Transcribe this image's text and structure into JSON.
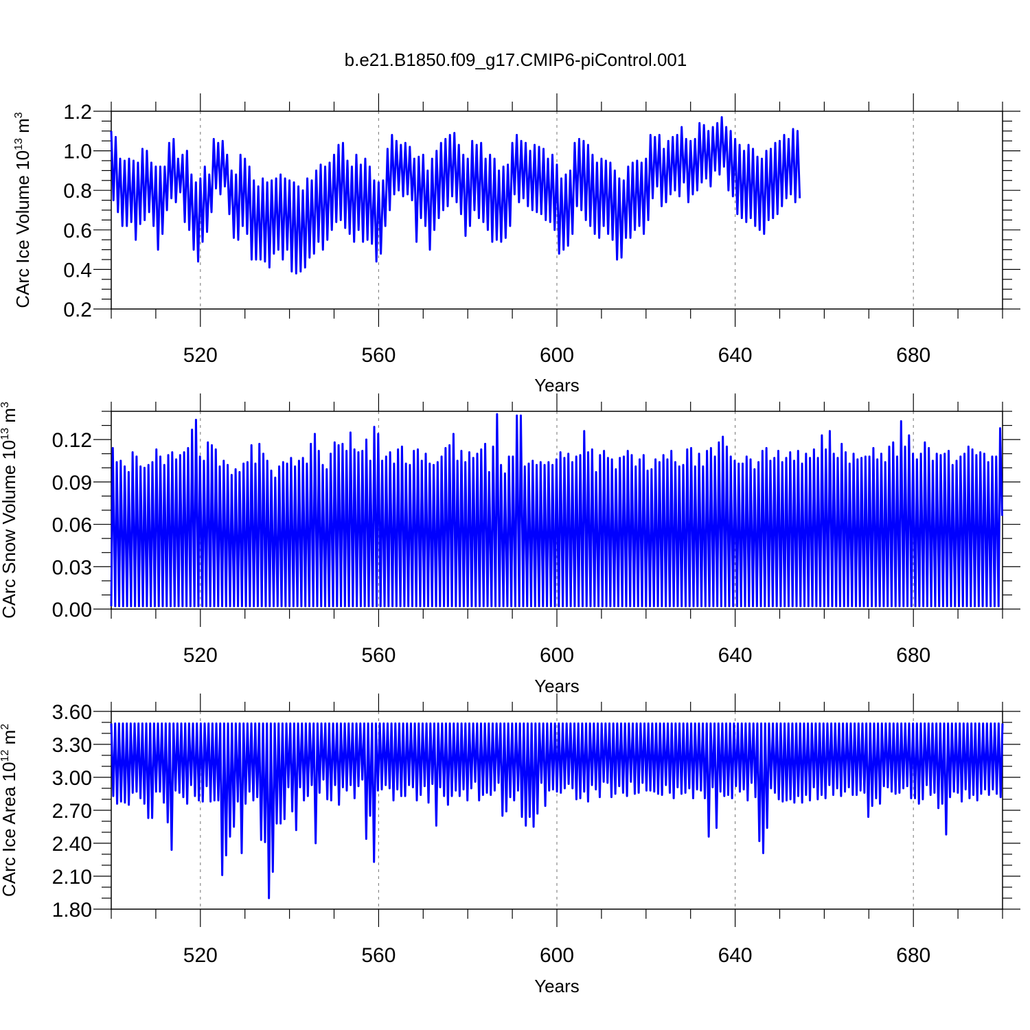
{
  "title": "b.e21.B1850.f09_g17.CMIP6-piControl.001",
  "chart_data": [
    {
      "type": "line",
      "title": "b.e21.B1850.f09_g17.CMIP6-piControl.001",
      "xlabel": "Years",
      "ylabel": {
        "prefix": "CArc Ice Volume 10",
        "exp": "13",
        "unit": " m",
        "unit_exp": "3"
      },
      "xlim": [
        500,
        700
      ],
      "ylim": [
        0.2,
        1.2
      ],
      "xticks": [
        "520",
        "560",
        "600",
        "640",
        "680"
      ],
      "yticks": [
        "0.2",
        "0.4",
        "0.6",
        "0.8",
        "1.0",
        "1.2"
      ],
      "color": "#0000ff",
      "series": [
        {
          "x_start": 500,
          "step": 0.5,
          "values": [
            1.1,
            0.75,
            1.07,
            0.69,
            0.96,
            0.62,
            0.95,
            0.62,
            0.96,
            0.64,
            0.95,
            0.55,
            0.94,
            0.63,
            1.01,
            0.65,
            1.0,
            0.69,
            0.94,
            0.62,
            0.92,
            0.5,
            0.92,
            0.58,
            0.92,
            0.7,
            1.04,
            0.76,
            1.06,
            0.74,
            0.96,
            0.79,
            0.98,
            0.64,
            1.0,
            0.6,
            0.88,
            0.5,
            0.84,
            0.44,
            0.86,
            0.54,
            0.92,
            0.59,
            0.88,
            0.69,
            1.06,
            0.81,
            1.04,
            0.78,
            1.05,
            0.82,
            0.98,
            0.68,
            0.9,
            0.56,
            0.88,
            0.55,
            0.98,
            0.62,
            0.96,
            0.58,
            0.92,
            0.45,
            0.85,
            0.45,
            0.82,
            0.45,
            0.86,
            0.44,
            0.84,
            0.41,
            0.85,
            0.48,
            0.86,
            0.5,
            0.88,
            0.45,
            0.86,
            0.5,
            0.85,
            0.39,
            0.84,
            0.38,
            0.82,
            0.39,
            0.8,
            0.41,
            0.86,
            0.46,
            0.85,
            0.48,
            0.9,
            0.54,
            0.93,
            0.5,
            0.92,
            0.55,
            0.94,
            0.6,
            0.98,
            0.64,
            1.03,
            0.65,
            1.04,
            0.61,
            0.95,
            0.58,
            0.92,
            0.54,
            0.98,
            0.6,
            0.93,
            0.54,
            0.96,
            0.55,
            0.92,
            0.53,
            0.85,
            0.44,
            0.84,
            0.48,
            0.85,
            0.62,
            1.01,
            0.7,
            1.08,
            0.78,
            1.05,
            0.8,
            1.03,
            0.77,
            1.04,
            0.78,
            1.02,
            0.75,
            0.96,
            0.54,
            0.97,
            0.66,
            0.98,
            0.62,
            0.9,
            0.5,
            0.96,
            0.6,
            1.0,
            0.66,
            1.04,
            0.7,
            1.06,
            0.72,
            1.08,
            0.77,
            1.09,
            0.74,
            1.03,
            0.68,
            0.98,
            0.57,
            0.96,
            0.62,
            1.05,
            0.7,
            1.03,
            0.66,
            1.04,
            0.64,
            0.96,
            0.6,
            0.98,
            0.54,
            0.96,
            0.55,
            0.9,
            0.54,
            0.92,
            0.56,
            0.93,
            0.62,
            1.04,
            0.78,
            1.08,
            0.74,
            1.05,
            0.76,
            1.04,
            0.72,
            1.0,
            0.7,
            1.03,
            0.69,
            1.02,
            0.68,
            1.01,
            0.65,
            0.96,
            0.64,
            0.98,
            0.6,
            0.93,
            0.48,
            0.86,
            0.5,
            0.88,
            0.52,
            0.9,
            0.58,
            1.04,
            0.72,
            1.06,
            0.7,
            1.05,
            0.65,
            1.03,
            0.62,
            0.98,
            0.58,
            0.94,
            0.56,
            0.96,
            0.62,
            0.95,
            0.58,
            0.94,
            0.55,
            0.9,
            0.45,
            0.86,
            0.46,
            0.85,
            0.56,
            0.92,
            0.56,
            0.94,
            0.6,
            0.95,
            0.62,
            0.94,
            0.58,
            0.96,
            0.65,
            1.08,
            0.76,
            1.07,
            0.82,
            1.08,
            0.72,
            1.01,
            0.74,
            1.05,
            0.78,
            1.07,
            0.8,
            1.08,
            0.77,
            1.12,
            0.84,
            1.06,
            0.74,
            1.05,
            0.78,
            1.06,
            0.8,
            1.14,
            0.84,
            1.13,
            0.86,
            1.1,
            0.82,
            1.12,
            0.9,
            1.14,
            0.88,
            1.17,
            0.92,
            1.12,
            0.8,
            1.1,
            0.77,
            1.06,
            0.68,
            1.03,
            0.66,
            1.0,
            0.64,
            1.03,
            0.66,
            1.01,
            0.62,
            0.97,
            0.6,
            0.96,
            0.58,
            1.0,
            0.65,
            1.01,
            0.66,
            1.04,
            0.68,
            1.05,
            0.72,
            1.08,
            0.76,
            1.06,
            0.78,
            1.11,
            0.74,
            1.1,
            0.76
          ]
        }
      ]
    },
    {
      "type": "line",
      "xlabel": "Years",
      "ylabel": {
        "prefix": "CArc Snow Volume 10",
        "exp": "13",
        "unit": " m",
        "unit_exp": "3"
      },
      "xlim": [
        500,
        700
      ],
      "ylim": [
        0.0,
        0.14
      ],
      "xticks": [
        "520",
        "560",
        "600",
        "640",
        "680"
      ],
      "yticks": [
        "0.00",
        "0.03",
        "0.06",
        "0.09",
        "0.12"
      ],
      "color": "#0000ff",
      "series": [
        {
          "x_start": 500,
          "min_value": 0.002,
          "peaks": [
            0.114,
            0.104,
            0.105,
            0.101,
            0.097,
            0.111,
            0.108,
            0.101,
            0.1,
            0.102,
            0.104,
            0.113,
            0.108,
            0.102,
            0.109,
            0.111,
            0.106,
            0.109,
            0.111,
            0.114,
            0.127,
            0.134,
            0.108,
            0.105,
            0.118,
            0.116,
            0.113,
            0.101,
            0.105,
            0.102,
            0.095,
            0.099,
            0.097,
            0.103,
            0.104,
            0.116,
            0.103,
            0.117,
            0.11,
            0.105,
            0.098,
            0.093,
            0.101,
            0.104,
            0.103,
            0.107,
            0.101,
            0.105,
            0.107,
            0.103,
            0.117,
            0.124,
            0.112,
            0.102,
            0.099,
            0.11,
            0.118,
            0.116,
            0.117,
            0.112,
            0.125,
            0.113,
            0.111,
            0.112,
            0.12,
            0.105,
            0.129,
            0.124,
            0.105,
            0.108,
            0.111,
            0.103,
            0.113,
            0.115,
            0.103,
            0.102,
            0.112,
            0.113,
            0.105,
            0.11,
            0.103,
            0.102,
            0.104,
            0.108,
            0.114,
            0.116,
            0.124,
            0.105,
            0.112,
            0.104,
            0.111,
            0.107,
            0.11,
            0.113,
            0.117,
            0.097,
            0.115,
            0.138,
            0.102,
            0.096,
            0.108,
            0.108,
            0.137,
            0.137,
            0.101,
            0.103,
            0.105,
            0.102,
            0.104,
            0.102,
            0.104,
            0.102,
            0.106,
            0.111,
            0.107,
            0.11,
            0.104,
            0.108,
            0.109,
            0.126,
            0.111,
            0.113,
            0.097,
            0.109,
            0.112,
            0.107,
            0.106,
            0.099,
            0.107,
            0.108,
            0.112,
            0.109,
            0.101,
            0.106,
            0.109,
            0.098,
            0.099,
            0.106,
            0.104,
            0.109,
            0.106,
            0.112,
            0.104,
            0.101,
            0.102,
            0.113,
            0.114,
            0.101,
            0.11,
            0.101,
            0.112,
            0.114,
            0.108,
            0.118,
            0.122,
            0.115,
            0.108,
            0.105,
            0.103,
            0.103,
            0.108,
            0.106,
            0.099,
            0.104,
            0.112,
            0.114,
            0.105,
            0.107,
            0.112,
            0.104,
            0.107,
            0.111,
            0.105,
            0.112,
            0.103,
            0.11,
            0.107,
            0.113,
            0.107,
            0.123,
            0.113,
            0.126,
            0.11,
            0.107,
            0.117,
            0.111,
            0.103,
            0.11,
            0.106,
            0.107,
            0.108,
            0.108,
            0.114,
            0.106,
            0.11,
            0.104,
            0.115,
            0.118,
            0.108,
            0.133,
            0.115,
            0.123,
            0.11,
            0.106,
            0.11,
            0.118,
            0.114,
            0.105,
            0.11,
            0.109,
            0.11,
            0.112,
            0.102,
            0.105,
            0.108,
            0.11,
            0.115,
            0.113,
            0.109,
            0.111,
            0.11,
            0.104,
            0.108,
            0.108,
            0.128
          ]
        }
      ]
    },
    {
      "type": "line",
      "xlabel": "Years",
      "ylabel": {
        "prefix": "CArc Ice Area 10",
        "exp": "12",
        "unit": " m",
        "unit_exp": "2"
      },
      "xlim": [
        500,
        700
      ],
      "ylim": [
        1.8,
        3.6
      ],
      "xticks": [
        "520",
        "560",
        "600",
        "640",
        "680"
      ],
      "yticks": [
        "1.80",
        "2.10",
        "2.40",
        "2.70",
        "3.00",
        "3.30",
        "3.60"
      ],
      "color": "#0000ff",
      "series": [
        {
          "x_start": 500,
          "max_value": 3.49,
          "troughs": [
            2.83,
            2.76,
            2.78,
            2.77,
            2.75,
            2.86,
            2.87,
            2.81,
            2.76,
            2.63,
            2.63,
            2.87,
            2.87,
            2.77,
            2.59,
            2.34,
            2.88,
            2.86,
            2.82,
            2.76,
            2.93,
            2.83,
            2.79,
            2.78,
            2.92,
            2.78,
            2.79,
            2.79,
            2.11,
            2.29,
            2.46,
            2.55,
            2.78,
            2.31,
            2.76,
            2.87,
            2.79,
            2.82,
            2.43,
            2.41,
            1.9,
            2.14,
            2.58,
            2.58,
            2.62,
            2.91,
            2.69,
            2.52,
            2.91,
            2.79,
            2.83,
            2.93,
            2.4,
            2.86,
            2.98,
            2.8,
            2.79,
            2.93,
            2.75,
            2.91,
            2.88,
            2.93,
            2.81,
            2.92,
            2.98,
            2.44,
            2.65,
            2.23,
            2.88,
            2.89,
            2.93,
            2.9,
            2.79,
            2.89,
            2.83,
            2.83,
            2.93,
            2.91,
            2.79,
            2.84,
            2.92,
            2.77,
            2.94,
            2.56,
            2.91,
            2.83,
            2.75,
            2.83,
            2.88,
            2.83,
            2.89,
            2.79,
            2.9,
            2.96,
            2.79,
            2.84,
            2.86,
            2.84,
            2.88,
            2.95,
            2.65,
            2.69,
            2.82,
            2.79,
            2.88,
            2.64,
            2.56,
            2.64,
            2.55,
            2.67,
            2.95,
            2.74,
            2.88,
            2.89,
            2.87,
            2.86,
            2.9,
            2.94,
            2.9,
            2.8,
            2.81,
            2.87,
            2.78,
            2.93,
            2.89,
            2.82,
            2.96,
            2.95,
            2.82,
            2.85,
            2.92,
            2.86,
            2.83,
            2.96,
            2.85,
            2.86,
            2.95,
            2.88,
            2.88,
            2.87,
            2.85,
            2.84,
            2.93,
            2.86,
            2.81,
            2.91,
            2.85,
            2.86,
            2.9,
            2.81,
            2.89,
            2.88,
            2.81,
            2.46,
            2.91,
            2.54,
            2.87,
            2.83,
            2.84,
            2.81,
            2.92,
            2.87,
            2.89,
            2.79,
            2.95,
            2.82,
            2.42,
            2.31,
            2.54,
            2.9,
            2.86,
            2.8,
            2.78,
            2.79,
            2.8,
            2.77,
            2.83,
            2.77,
            2.84,
            2.79,
            2.91,
            2.8,
            2.84,
            2.81,
            2.93,
            2.84,
            2.9,
            2.83,
            2.87,
            2.91,
            2.84,
            2.84,
            2.88,
            2.86,
            2.64,
            2.74,
            2.81,
            2.76,
            2.92,
            2.91,
            2.87,
            2.85,
            2.86,
            2.9,
            2.92,
            2.81,
            2.81,
            2.76,
            2.8,
            2.93,
            2.84,
            2.86,
            2.72,
            2.76,
            2.48,
            2.82,
            2.87,
            2.86,
            2.78,
            2.89,
            2.81,
            2.84,
            2.79,
            2.85,
            2.89,
            2.84,
            2.89,
            2.85,
            2.82
          ]
        }
      ]
    }
  ]
}
